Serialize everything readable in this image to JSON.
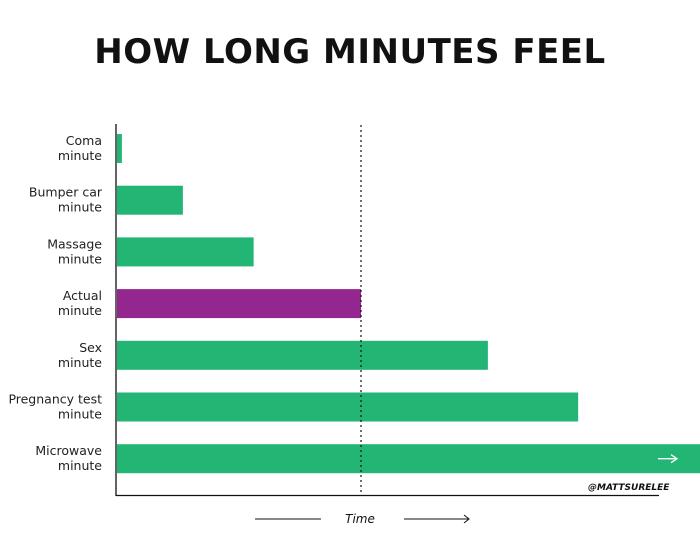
{
  "chart_data": {
    "type": "bar",
    "orientation": "horizontal",
    "title": "HOW LONG MINUTES FEEL",
    "xlabel": "Time",
    "ylabel": "",
    "categories": [
      [
        "Coma",
        "minute"
      ],
      [
        "Bumper car",
        "minute"
      ],
      [
        "Massage",
        "minute"
      ],
      [
        "Actual",
        "minute"
      ],
      [
        "Sex",
        "minute"
      ],
      [
        "Pregnancy test",
        "minute"
      ],
      [
        "Microwave",
        "minute"
      ]
    ],
    "values": [
      0.02,
      0.27,
      0.56,
      1.0,
      1.52,
      1.89,
      2.39
    ],
    "overflow_arrow_on": "Microwave minute",
    "reference_line": {
      "value": 1.0,
      "style": "dotted"
    },
    "grid": false,
    "axis_ticks": false,
    "colors": {
      "default": "#22b573",
      "highlight": "#93278f",
      "highlight_category": "Actual minute"
    },
    "credit": "@MATTSURELEE"
  }
}
